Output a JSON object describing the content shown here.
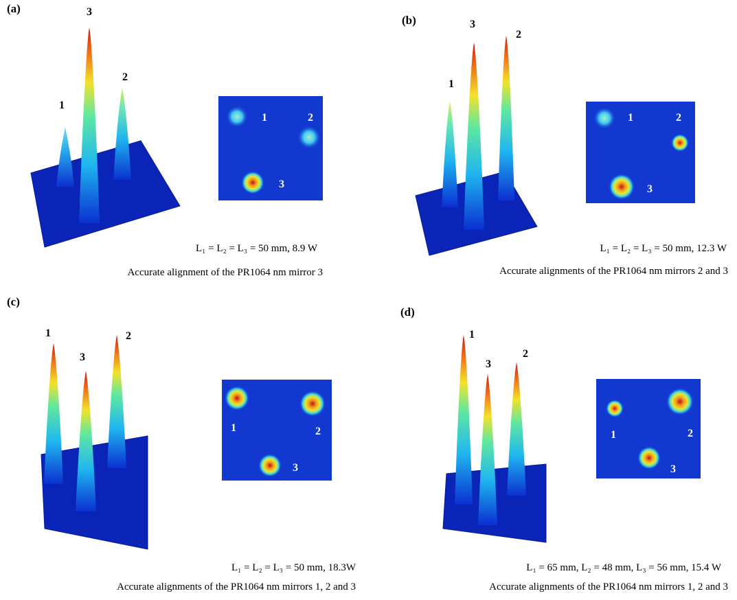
{
  "panels": [
    {
      "label": "(a)",
      "peak_labels": [
        "1",
        "3",
        "2"
      ],
      "spot_labels": [
        "1",
        "2",
        "3"
      ],
      "caption": [
        "L₁ = L₂ = L₃ = 50 mm, 8.9 W",
        "Accurate alignment of the PR1064 nm mirror 3"
      ]
    },
    {
      "label": "(b)",
      "peak_labels": [
        "1",
        "3",
        "2"
      ],
      "spot_labels": [
        "1",
        "2",
        "3"
      ],
      "caption": [
        "L₁ = L₂ = L₃ = 50 mm, 12.3 W",
        "Accurate alignments of the PR1064 nm mirrors 2 and 3"
      ]
    },
    {
      "label": "(c)",
      "peak_labels": [
        "1",
        "3",
        "2"
      ],
      "spot_labels": [
        "1",
        "2",
        "3"
      ],
      "caption": [
        "L₁ = L₂ = L₃ = 50 mm, 18.3W",
        "Accurate alignments of the PR1064 nm mirrors 1, 2 and 3"
      ]
    },
    {
      "label": "(d)",
      "peak_labels": [
        "1",
        "3",
        "2"
      ],
      "spot_labels": [
        "1",
        "2",
        "3"
      ],
      "caption": [
        "L₁ = 65 mm, L₂ = 48 mm, L₃ = 56 mm, 15.4 W",
        "Accurate alignments of the PR1064 nm mirrors 1, 2 and 3"
      ]
    }
  ]
}
